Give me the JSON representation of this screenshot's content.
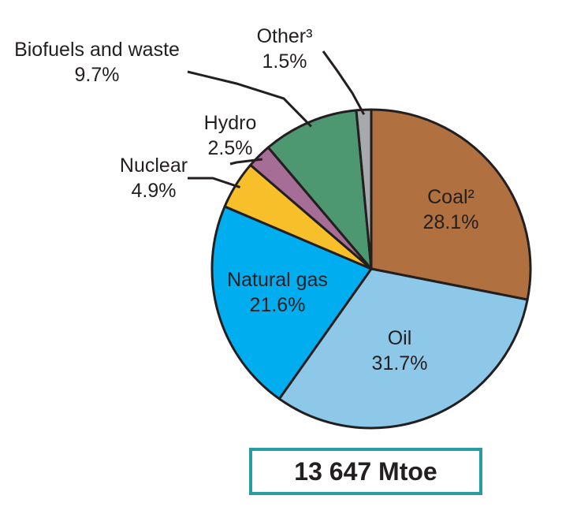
{
  "chart_data": {
    "type": "pie",
    "slices": [
      {
        "label": "Coal²",
        "value": 28.1,
        "display": "28.1%",
        "color": "#b07040"
      },
      {
        "label": "Oil",
        "value": 31.7,
        "display": "31.7%",
        "color": "#8ec8e8"
      },
      {
        "label": "Natural gas",
        "value": 21.6,
        "display": "21.6%",
        "color": "#00aeef"
      },
      {
        "label": "Nuclear",
        "value": 4.9,
        "display": "4.9%",
        "color": "#f7c02a"
      },
      {
        "label": "Hydro",
        "value": 2.5,
        "display": "2.5%",
        "color": "#a66d96"
      },
      {
        "label": "Biofuels and waste",
        "value": 9.7,
        "display": "9.7%",
        "color": "#4d9870"
      },
      {
        "label": "Other³",
        "value": 1.5,
        "display": "1.5%",
        "color": "#a7aaad"
      }
    ],
    "total_label": "13 647 Mtoe"
  }
}
